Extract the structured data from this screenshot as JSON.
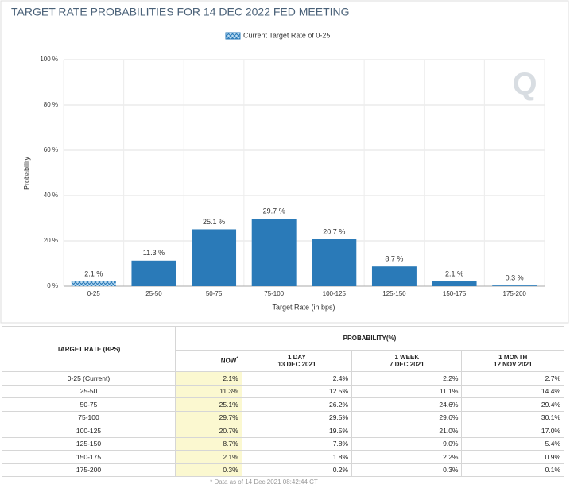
{
  "chart_data": {
    "type": "bar",
    "title": "TARGET RATE PROBABILITIES FOR 14 DEC 2022 FED MEETING",
    "legend": "Current Target Rate of 0-25",
    "watermark": "Q",
    "ylabel": "Probability",
    "xlabel": "Target Rate (in bps)",
    "categories": [
      "0-25",
      "25-50",
      "50-75",
      "75-100",
      "100-125",
      "125-150",
      "150-175",
      "175-200"
    ],
    "values": [
      2.1,
      11.3,
      25.1,
      29.7,
      20.7,
      8.7,
      2.1,
      0.3
    ],
    "value_labels": [
      "2.1 %",
      "11.3 %",
      "25.1 %",
      "29.7 %",
      "20.7 %",
      "8.7 %",
      "2.1 %",
      "0.3 %"
    ],
    "color": "#2a7ab8",
    "hatched": [
      true,
      false,
      false,
      false,
      false,
      false,
      false,
      false
    ],
    "ylim": [
      0,
      100
    ],
    "yticks": [
      {
        "value": 0,
        "label": "0 %"
      },
      {
        "value": 20,
        "label": "20 %"
      },
      {
        "value": 40,
        "label": "40 %"
      },
      {
        "value": 60,
        "label": "60 %"
      },
      {
        "value": 80,
        "label": "80 %"
      },
      {
        "value": 100,
        "label": "100 %"
      }
    ],
    "grid": true
  },
  "table": {
    "row_header": "TARGET RATE (BPS)",
    "group_header": "PROBABILITY(%)",
    "columns": [
      {
        "title": "NOW",
        "note": "*"
      },
      {
        "title": "1 DAY",
        "date": "13 DEC 2021"
      },
      {
        "title": "1 WEEK",
        "date": "7 DEC 2021"
      },
      {
        "title": "1 MONTH",
        "date": "12 NOV 2021"
      }
    ],
    "rows": [
      [
        "0-25 (Current)",
        "2.1%",
        "2.4%",
        "2.2%",
        "2.7%"
      ],
      [
        "25-50",
        "11.3%",
        "12.5%",
        "11.1%",
        "14.4%"
      ],
      [
        "50-75",
        "25.1%",
        "26.2%",
        "24.6%",
        "29.4%"
      ],
      [
        "75-100",
        "29.7%",
        "29.5%",
        "29.6%",
        "30.1%"
      ],
      [
        "100-125",
        "20.7%",
        "19.5%",
        "21.0%",
        "17.0%"
      ],
      [
        "125-150",
        "8.7%",
        "7.8%",
        "9.0%",
        "5.4%"
      ],
      [
        "150-175",
        "2.1%",
        "1.8%",
        "2.2%",
        "0.9%"
      ],
      [
        "175-200",
        "0.3%",
        "0.2%",
        "0.3%",
        "0.1%"
      ]
    ],
    "footnote": "* Data as of 14 Dec 2021 08:42:44 CT"
  }
}
